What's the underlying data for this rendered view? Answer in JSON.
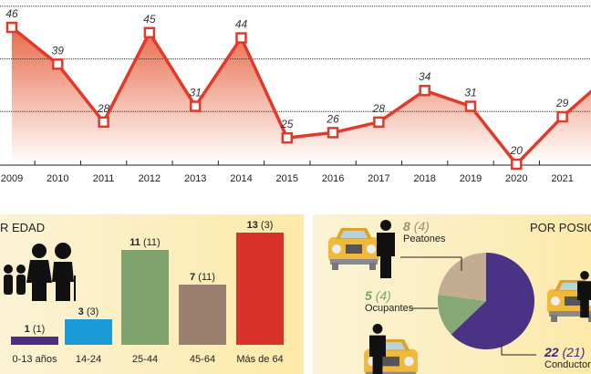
{
  "chart_data": [
    {
      "type": "area",
      "x": [
        "2009",
        "2010",
        "2011",
        "2012",
        "2013",
        "2014",
        "2015",
        "2016",
        "2017",
        "2018",
        "2019",
        "2020",
        "2021"
      ],
      "values": [
        46,
        39,
        28,
        45,
        31,
        44,
        25,
        26,
        28,
        34,
        31,
        20,
        29
      ],
      "ylim": [
        20,
        50
      ],
      "grid_values": [
        30,
        40,
        50
      ],
      "grid": true,
      "colors": {
        "line": "#e23a2a",
        "fill_top": "#e8694a",
        "fill_bottom": "#ffffff"
      }
    },
    {
      "type": "bar",
      "title": "R EDAD",
      "categories": [
        "0-13 años",
        "14-24",
        "25-44",
        "45-64",
        "Más de 64"
      ],
      "values": [
        1,
        3,
        11,
        7,
        13
      ],
      "previous": [
        "(1)",
        "(3)",
        "(11)",
        "(11)",
        "(3)"
      ],
      "colors": [
        "#4b2f82",
        "#1a9ad6",
        "#7ea36e",
        "#9b7f6f",
        "#d9322a"
      ],
      "icons": [
        "family-silhouette-icon"
      ]
    },
    {
      "type": "pie",
      "title": "POR POSIC",
      "categories": [
        "Conductores",
        "Ocupantes",
        "Peatones"
      ],
      "values": [
        22,
        5,
        8
      ],
      "previous": [
        "(21)",
        "(4)",
        "(4)"
      ],
      "colors": [
        "#4a3385",
        "#86a877",
        "#c2ad92"
      ],
      "icons": [
        "taxi-icon",
        "person-icon"
      ]
    }
  ]
}
